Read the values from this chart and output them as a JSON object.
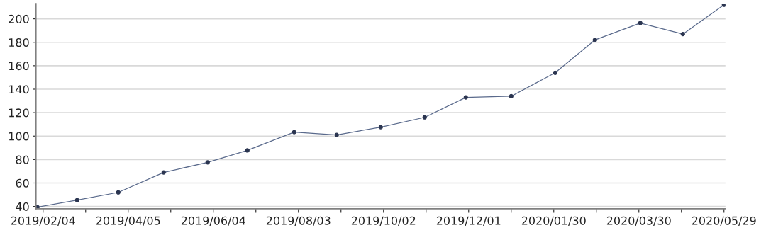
{
  "chart_data": {
    "type": "line",
    "x": [
      "2019-01-31",
      "2019-02-28",
      "2019-03-29",
      "2019-04-30",
      "2019-05-31",
      "2019-06-28",
      "2019-07-31",
      "2019-08-30",
      "2019-09-30",
      "2019-10-31",
      "2019-11-29",
      "2019-12-31",
      "2020-01-31",
      "2020-02-28",
      "2020-03-31",
      "2020-04-30",
      "2020-05-29"
    ],
    "series": [
      {
        "color": "#5a6a8c",
        "values": [
          39.4,
          45.4,
          52,
          69,
          77.6,
          87.8,
          103.4,
          101,
          107.6,
          116,
          133,
          134,
          154,
          182,
          196.4,
          187,
          212
        ]
      }
    ],
    "marker": "circle",
    "line_style": "solid",
    "grid": "y",
    "legend": false,
    "xlim": [
      "2019-01-30",
      "2020-05-30"
    ],
    "xticks": [
      {
        "value": "2019-02-04",
        "label": "2019/02/04"
      },
      {
        "value": "2019-03-06",
        "label": null
      },
      {
        "value": "2019-04-05",
        "label": "2019/04/05"
      },
      {
        "value": "2019-05-05",
        "label": null
      },
      {
        "value": "2019-06-04",
        "label": "2019/06/04"
      },
      {
        "value": "2019-07-04",
        "label": null
      },
      {
        "value": "2019-08-03",
        "label": "2019/08/03"
      },
      {
        "value": "2019-09-02",
        "label": null
      },
      {
        "value": "2019-10-02",
        "label": "2019/10/02"
      },
      {
        "value": "2019-11-01",
        "label": null
      },
      {
        "value": "2019-12-01",
        "label": "2019/12/01"
      },
      {
        "value": "2019-12-31",
        "label": null
      },
      {
        "value": "2020-01-30",
        "label": "2020/01/30"
      },
      {
        "value": "2020-02-29",
        "label": null
      },
      {
        "value": "2020-03-30",
        "label": "2020/03/30"
      },
      {
        "value": "2020-04-29",
        "label": null
      },
      {
        "value": "2020-05-29",
        "label": "2020/05/29"
      }
    ],
    "ylim": [
      38,
      213
    ],
    "yticks": [
      40,
      60,
      80,
      100,
      120,
      140,
      160,
      180,
      200
    ]
  }
}
